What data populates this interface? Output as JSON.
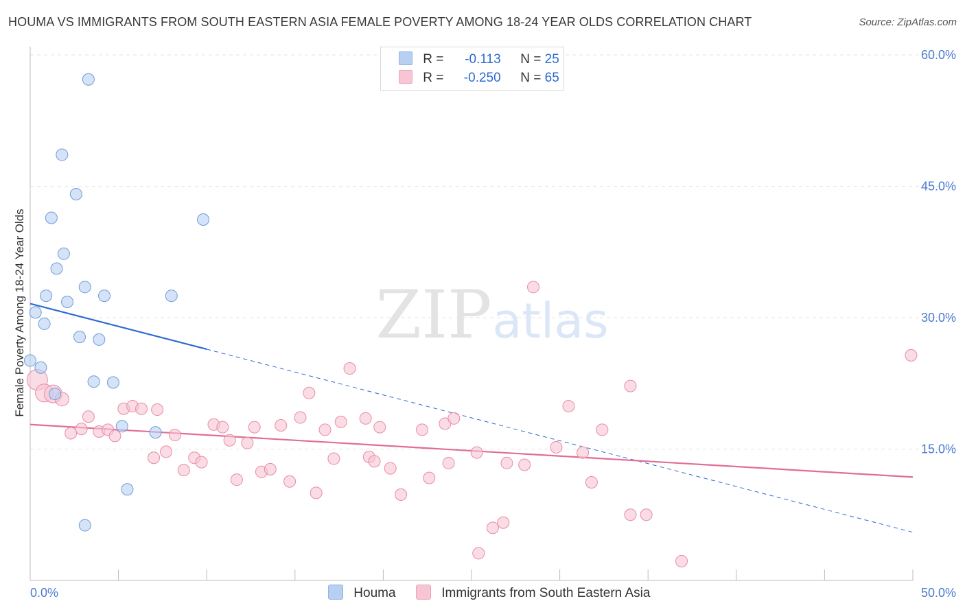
{
  "title": "HOUMA VS IMMIGRANTS FROM SOUTH EASTERN ASIA FEMALE POVERTY AMONG 18-24 YEAR OLDS CORRELATION CHART",
  "source": "Source: ZipAtlas.com",
  "watermark": {
    "zip": "ZIP",
    "atlas": "atlas"
  },
  "legend_top": [
    {
      "r_label": "R =",
      "r_value": "-0.113",
      "n_label": "N =",
      "n_value": "25",
      "color": "#b7d0f2"
    },
    {
      "r_label": "R =",
      "r_value": "-0.250",
      "n_label": "N =",
      "n_value": "65",
      "color": "#f7c5d3"
    }
  ],
  "legend_bottom": [
    {
      "label": "Houma",
      "color": "#b7d0f2"
    },
    {
      "label": "Immigrants from South Eastern Asia",
      "color": "#f7c5d3"
    }
  ],
  "chart_data": {
    "type": "scatter",
    "title": "HOUMA VS IMMIGRANTS FROM SOUTH EASTERN ASIA FEMALE POVERTY AMONG 18-24 YEAR OLDS CORRELATION CHART",
    "xlabel": "",
    "ylabel": "Female Poverty Among 18-24 Year Olds",
    "xlim": [
      0,
      50
    ],
    "ylim": [
      0,
      60
    ],
    "x_tick_labels": [
      "0.0%",
      "50.0%"
    ],
    "y_ticks": [
      15,
      30,
      45,
      60
    ],
    "y_tick_labels": [
      "15.0%",
      "30.0%",
      "45.0%",
      "60.0%"
    ],
    "grid": true,
    "series": [
      {
        "name": "Houma",
        "color": "#b7d0f2",
        "stroke": "#6f9bd8",
        "points": [
          [
            3.3,
            57.2
          ],
          [
            1.8,
            48.6
          ],
          [
            2.6,
            44.1
          ],
          [
            1.2,
            41.4
          ],
          [
            9.8,
            41.2
          ],
          [
            1.9,
            37.3
          ],
          [
            1.5,
            35.6
          ],
          [
            3.1,
            33.5
          ],
          [
            0.9,
            32.5
          ],
          [
            4.2,
            32.5
          ],
          [
            8.0,
            32.5
          ],
          [
            2.1,
            31.8
          ],
          [
            0.3,
            30.6
          ],
          [
            0.8,
            29.3
          ],
          [
            2.8,
            27.8
          ],
          [
            3.9,
            27.5
          ],
          [
            0.0,
            25.1
          ],
          [
            0.6,
            24.3
          ],
          [
            3.6,
            22.7
          ],
          [
            4.7,
            22.6
          ],
          [
            1.4,
            21.3
          ],
          [
            5.2,
            17.6
          ],
          [
            7.1,
            16.9
          ],
          [
            5.5,
            10.4
          ],
          [
            3.1,
            6.3
          ]
        ],
        "trend": {
          "x1": 0,
          "y1": 31.6,
          "x2": 10,
          "y2": 26.4,
          "x2_dashed": 50,
          "y2_dashed": 5.5
        }
      },
      {
        "name": "Immigrants from South Eastern Asia",
        "color": "#f7c5d3",
        "stroke": "#ea8aa7",
        "points": [
          [
            0.4,
            22.9
          ],
          [
            0.8,
            21.4
          ],
          [
            1.3,
            21.3
          ],
          [
            1.8,
            20.7
          ],
          [
            5.3,
            19.6
          ],
          [
            5.8,
            19.9
          ],
          [
            6.3,
            19.6
          ],
          [
            7.2,
            19.5
          ],
          [
            3.3,
            18.7
          ],
          [
            2.3,
            16.8
          ],
          [
            2.9,
            17.3
          ],
          [
            3.9,
            17.0
          ],
          [
            4.4,
            17.2
          ],
          [
            4.8,
            16.5
          ],
          [
            8.2,
            16.6
          ],
          [
            10.4,
            17.8
          ],
          [
            10.9,
            17.5
          ],
          [
            11.3,
            16.0
          ],
          [
            12.3,
            15.7
          ],
          [
            12.7,
            17.5
          ],
          [
            7.0,
            14.0
          ],
          [
            7.7,
            14.7
          ],
          [
            8.7,
            12.6
          ],
          [
            9.3,
            14.0
          ],
          [
            9.7,
            13.5
          ],
          [
            11.7,
            11.5
          ],
          [
            13.1,
            12.4
          ],
          [
            13.6,
            12.7
          ],
          [
            14.2,
            17.7
          ],
          [
            14.7,
            11.3
          ],
          [
            15.3,
            18.6
          ],
          [
            15.8,
            21.4
          ],
          [
            16.2,
            10.0
          ],
          [
            16.7,
            17.2
          ],
          [
            17.2,
            13.9
          ],
          [
            17.6,
            18.1
          ],
          [
            18.1,
            24.2
          ],
          [
            19.0,
            18.5
          ],
          [
            19.2,
            14.1
          ],
          [
            19.5,
            13.6
          ],
          [
            19.8,
            17.5
          ],
          [
            20.4,
            12.8
          ],
          [
            21.0,
            9.8
          ],
          [
            22.2,
            17.2
          ],
          [
            22.6,
            11.7
          ],
          [
            23.5,
            17.9
          ],
          [
            23.7,
            13.4
          ],
          [
            24.0,
            18.5
          ],
          [
            25.3,
            14.6
          ],
          [
            25.4,
            3.1
          ],
          [
            26.2,
            6.0
          ],
          [
            26.8,
            6.6
          ],
          [
            27.0,
            13.4
          ],
          [
            28.0,
            13.2
          ],
          [
            28.5,
            33.5
          ],
          [
            29.8,
            15.2
          ],
          [
            30.5,
            19.9
          ],
          [
            31.3,
            14.6
          ],
          [
            31.8,
            11.2
          ],
          [
            32.4,
            17.2
          ],
          [
            34.0,
            7.5
          ],
          [
            34.0,
            22.2
          ],
          [
            34.9,
            7.5
          ],
          [
            36.9,
            2.2
          ],
          [
            49.9,
            25.7
          ]
        ],
        "trend": {
          "x1": 0,
          "y1": 17.8,
          "x2": 50,
          "y2": 11.8
        }
      }
    ]
  }
}
